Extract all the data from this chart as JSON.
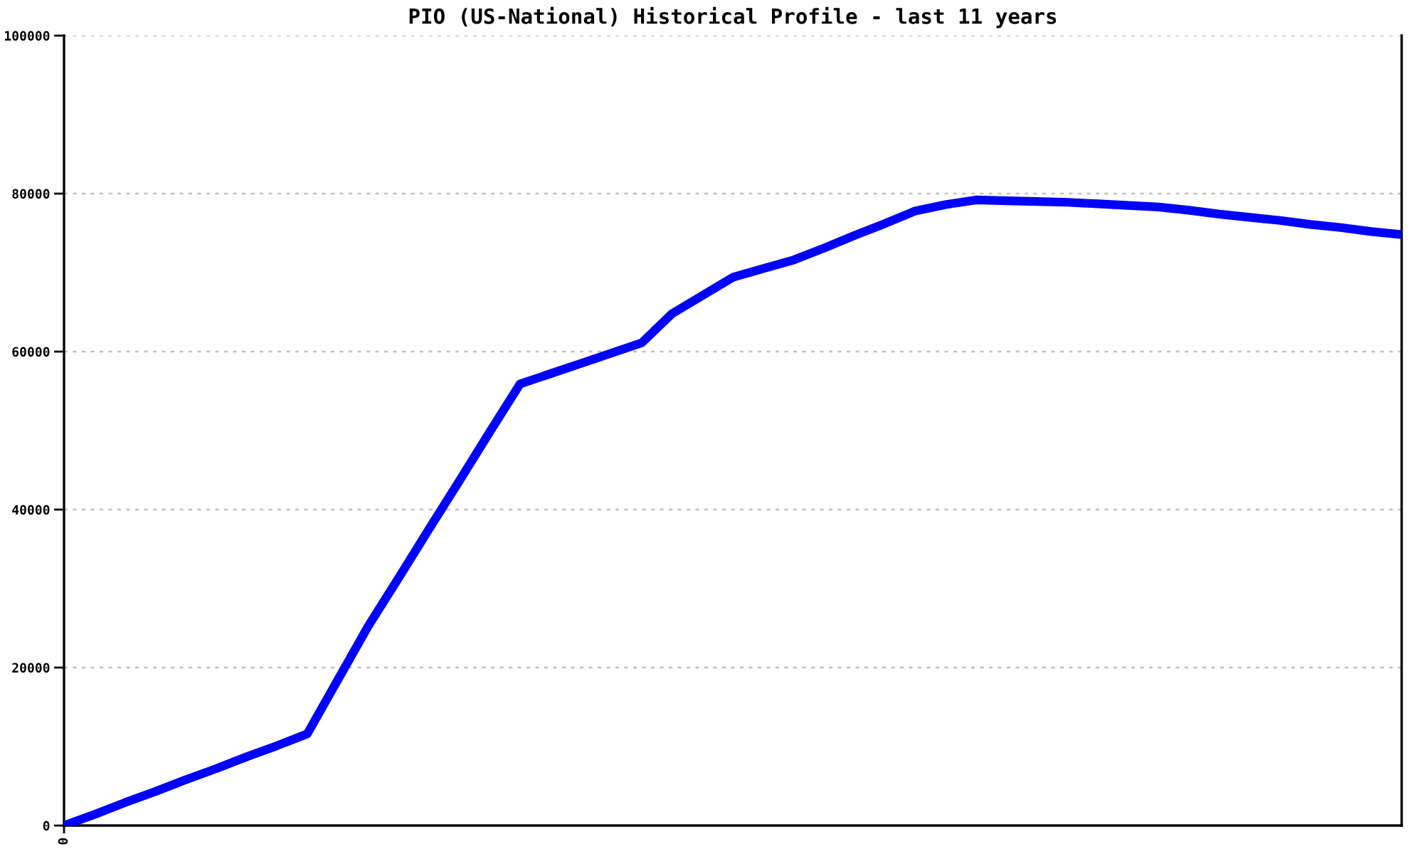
{
  "chart_data": {
    "type": "line",
    "title": "PIO (US-National) Historical Profile - last 11 years",
    "categories": [
      "0",
      null,
      null,
      null,
      null,
      null,
      null,
      null,
      null,
      null,
      null,
      null,
      null,
      null,
      null,
      null,
      null,
      null,
      null,
      null,
      null,
      null,
      null,
      null,
      null,
      null,
      null,
      null,
      null,
      null,
      null,
      null,
      null,
      null,
      null,
      null,
      null,
      null,
      null,
      null,
      null,
      null,
      null,
      null,
      null
    ],
    "series": [
      {
        "color": "#0000ff",
        "values": [
          0,
          1400,
          2900,
          4300,
          5800,
          7200,
          8700,
          10100,
          11600,
          18400,
          25200,
          31300,
          37500,
          43600,
          49800,
          55900,
          57200,
          58500,
          59800,
          61100,
          64800,
          67100,
          69400,
          70500,
          71600,
          73100,
          74700,
          76200,
          77800,
          78600,
          79200,
          79100,
          79000,
          78900,
          78700,
          78500,
          78300,
          77900,
          77400,
          77000,
          76600,
          76100,
          75700,
          75200,
          74800
        ]
      }
    ],
    "ylim": [
      0,
      100000
    ],
    "yticks": [
      0,
      20000,
      40000,
      60000,
      80000,
      100000
    ],
    "grid": "y",
    "marker": "none",
    "line_style": "solid"
  }
}
